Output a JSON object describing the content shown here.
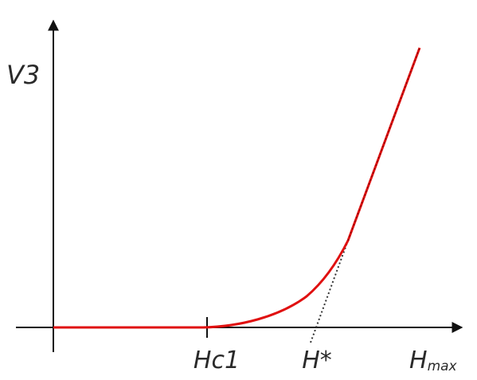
{
  "axes": {
    "y_label": "V3",
    "x_label": {
      "main": "H",
      "sub": "max"
    }
  },
  "markers": {
    "hc1": "Hc1",
    "h_star": "H*"
  }
}
